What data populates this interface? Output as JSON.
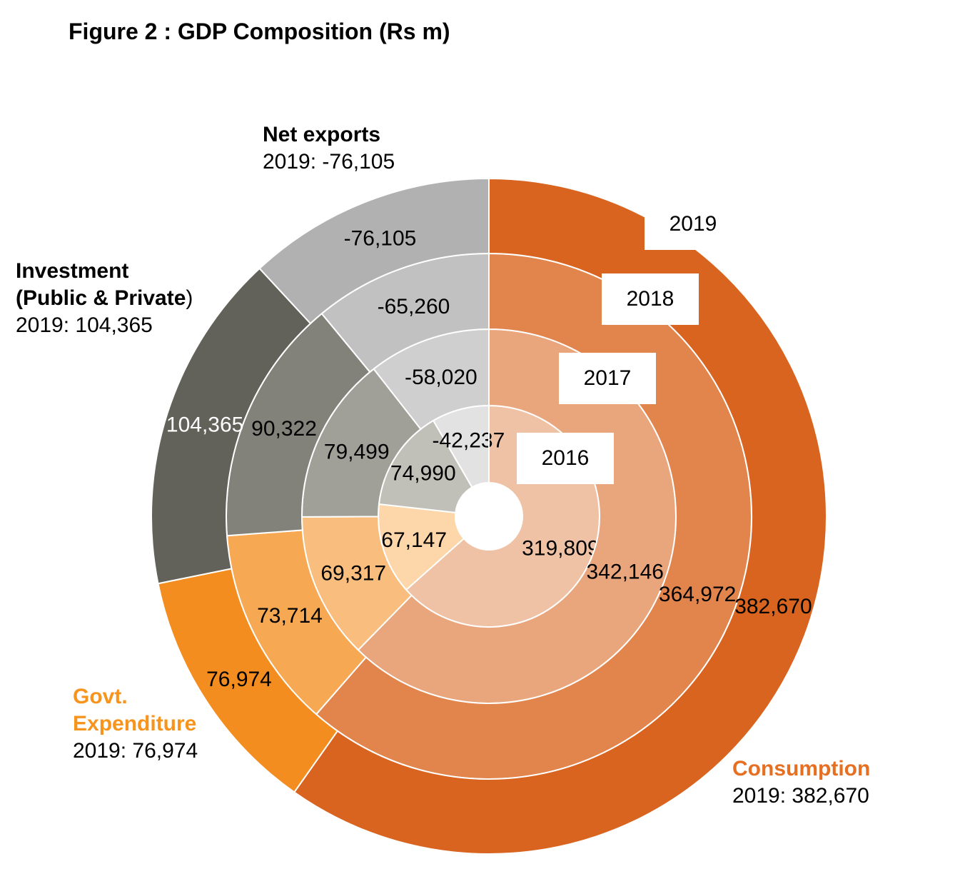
{
  "title": "Figure 2 : GDP Composition (Rs m)",
  "chart_data": {
    "type": "doughnut",
    "title": "Figure 2 : GDP Composition (Rs m)",
    "rings": [
      "2016",
      "2017",
      "2018",
      "2019"
    ],
    "categories": [
      "Consumption",
      "Govt. Expenditure",
      "Investment (Public & Private)",
      "Net exports"
    ],
    "series": [
      {
        "name": "2016",
        "values": [
          319809,
          67147,
          74990,
          -42237
        ],
        "labels": [
          "319,809",
          "67,147",
          "74,990",
          "-42,237"
        ]
      },
      {
        "name": "2017",
        "values": [
          342146,
          69317,
          79499,
          -58020
        ],
        "labels": [
          "342,146",
          "69,317",
          "79,499",
          "-58,020"
        ]
      },
      {
        "name": "2018",
        "values": [
          364972,
          73714,
          90322,
          -65260
        ],
        "labels": [
          "364,972",
          "73,714",
          "90,322",
          "-65,260"
        ]
      },
      {
        "name": "2019",
        "values": [
          382670,
          76974,
          104365,
          -76105
        ],
        "labels": [
          "382,670",
          "76,974",
          "104,365",
          "-76,105"
        ]
      }
    ],
    "colors": {
      "Consumption": [
        "#efc2a5",
        "#e9a67c",
        "#e2854d",
        "#d86420"
      ],
      "Govt. Expenditure": [
        "#fdd7a9",
        "#f9bd7d",
        "#f7a852",
        "#f48d1f"
      ],
      "Investment (Public & Private)": [
        "#c0c0b9",
        "#a0a099",
        "#82827a",
        "#62625a"
      ],
      "Net exports": [
        "#e2e2e2",
        "#cfcfcf",
        "#c1c1c1",
        "#b1b1b1"
      ]
    }
  },
  "labels": {
    "consumption": {
      "name": "Consumption",
      "value": "2019: 382,670",
      "color": "#e66f22"
    },
    "govt": {
      "name_line1": "Govt.",
      "name_line2": "Expenditure",
      "value": "2019: 76,974",
      "color": "#f7941d"
    },
    "investment": {
      "name_line1": "Investment",
      "name_line2": "(Public & Private",
      "name_paren": ")",
      "value": "2019: 104,365"
    },
    "net_exports": {
      "name": "Net exports",
      "value": "2019: -76,105"
    }
  },
  "year_boxes": [
    "2016",
    "2017",
    "2018",
    "2019"
  ]
}
